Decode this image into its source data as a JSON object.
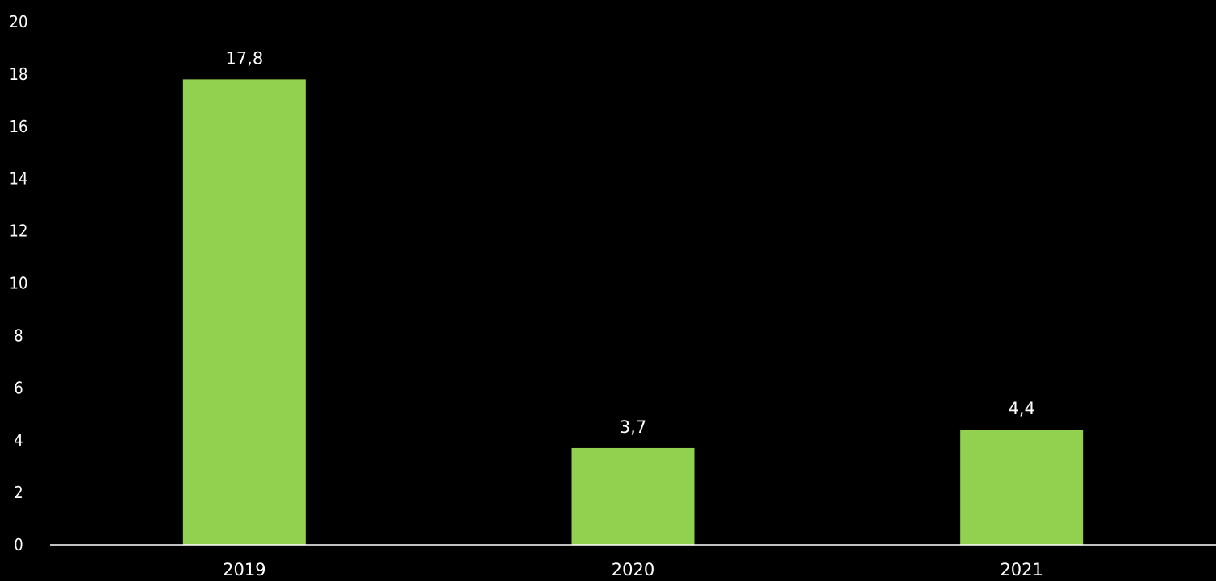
{
  "chart_data": {
    "type": "bar",
    "categories": [
      "2019",
      "2020",
      "2021"
    ],
    "values": [
      17.8,
      3.7,
      4.4
    ],
    "data_labels": [
      "17,8",
      "3,7",
      "4,4"
    ],
    "title": "",
    "xlabel": "",
    "ylabel": "",
    "ylim": [
      0,
      20
    ],
    "yticks": [
      0,
      2,
      4,
      6,
      8,
      10,
      12,
      14,
      16,
      18,
      20
    ],
    "grid": false,
    "legend": "none",
    "colors": {
      "background": "#000000",
      "bar": "#92d050",
      "text": "#ffffff",
      "axis": "#ffffff"
    }
  }
}
